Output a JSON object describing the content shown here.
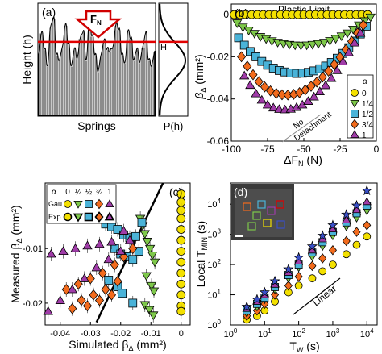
{
  "panel_letters": {
    "a": "(a)",
    "b": "(b)",
    "c": "(c)",
    "d": "(d)"
  },
  "colors": {
    "alpha_0": "#f3e000",
    "alpha_1_4": "#7ec84a",
    "alpha_1_2": "#4ab3d8",
    "alpha_3_4": "#f26b1d",
    "alpha_1": "#a03ca8",
    "red_line": "#e00000",
    "outline": "#000000"
  },
  "chart_data": [
    {
      "panel": "a",
      "type": "area",
      "ylabel": "Height (h)",
      "xlabel": "Springs",
      "force_label": "F",
      "force_subscript": "N",
      "h_marker": "H",
      "profile": [
        0.55,
        0.75,
        0.6,
        0.45,
        0.8,
        0.88,
        0.55,
        0.5,
        0.62,
        0.82,
        0.65,
        0.45,
        0.6,
        0.52,
        0.7,
        0.76,
        0.5,
        0.85,
        0.72,
        0.55,
        0.4,
        0.55,
        0.68,
        0.6,
        0.58,
        0.62,
        0.82,
        0.78,
        0.55,
        0.48,
        0.76,
        0.7,
        0.5,
        0.6,
        0.48,
        0.62,
        0.75,
        0.5,
        0.45,
        0.58
      ],
      "H_level": 0.66,
      "side_panel_xlabel": "P(h)"
    },
    {
      "panel": "b",
      "type": "scatter",
      "xlabel": "ΔF",
      "xlabel_sub": "N",
      "xlabel_unit": " (N)",
      "ylabel": "β",
      "ylabel_sub": "Δ",
      "ylabel_unit": " (mm²)",
      "xlim": [
        -100,
        0
      ],
      "ylim": [
        -0.06,
        0.005
      ],
      "xticks": [
        -100,
        -75,
        -50,
        -25,
        0
      ],
      "yticks": [
        0,
        -0.02,
        -0.04,
        -0.06
      ],
      "yticklabels": [
        "0",
        "-0.02",
        "-0.04",
        "-0.06"
      ],
      "annotations": {
        "plastic": "Plastic Limit",
        "no_detach_1": "No",
        "no_detach_2": "Detachment"
      },
      "legend_title": "α",
      "series": [
        {
          "name": "0",
          "marker": "circle",
          "color": "#f3e000",
          "x": [
            -98,
            -94,
            -90,
            -86,
            -82,
            -78,
            -74,
            -70,
            -66,
            -62,
            -58,
            -54,
            -50,
            -46,
            -42,
            -38,
            -34,
            -30,
            -26,
            -22,
            -18,
            -14,
            -10,
            -6
          ],
          "y": [
            0,
            0,
            0,
            0,
            0,
            0,
            0,
            0,
            0,
            0,
            0,
            0,
            0,
            0,
            0,
            0,
            0,
            0,
            0,
            0,
            0,
            0,
            0,
            0
          ]
        },
        {
          "name": "1/4",
          "marker": "triangle-down",
          "color": "#7ec84a",
          "x": [
            -96,
            -92,
            -88,
            -84,
            -80,
            -76,
            -72,
            -68,
            -64,
            -60,
            -56,
            -52,
            -48,
            -44,
            -40,
            -36,
            -32,
            -28,
            -24,
            -20,
            -16,
            -12,
            -8,
            -4
          ],
          "y": [
            -0.004,
            -0.006,
            -0.0075,
            -0.009,
            -0.0105,
            -0.0115,
            -0.0125,
            -0.0132,
            -0.0138,
            -0.0142,
            -0.0145,
            -0.0146,
            -0.0145,
            -0.0142,
            -0.0138,
            -0.0132,
            -0.0124,
            -0.0114,
            -0.0102,
            -0.0088,
            -0.007,
            -0.005,
            -0.003,
            -0.0012
          ]
        },
        {
          "name": "1/2",
          "marker": "square",
          "color": "#4ab3d8",
          "x": [
            -95,
            -91,
            -87,
            -83,
            -79,
            -75,
            -71,
            -67,
            -63,
            -59,
            -55,
            -51,
            -47,
            -43,
            -39,
            -35,
            -31,
            -27,
            -23,
            -19,
            -15,
            -11,
            -7
          ],
          "y": [
            -0.011,
            -0.0145,
            -0.0175,
            -0.02,
            -0.0222,
            -0.024,
            -0.0254,
            -0.0265,
            -0.0272,
            -0.0277,
            -0.0279,
            -0.0278,
            -0.0274,
            -0.0267,
            -0.0257,
            -0.0244,
            -0.0227,
            -0.0207,
            -0.0184,
            -0.0157,
            -0.0126,
            -0.0092,
            -0.0055
          ]
        },
        {
          "name": "3/4",
          "marker": "diamond",
          "color": "#f26b1d",
          "x": [
            -93,
            -89,
            -85,
            -81,
            -77,
            -73,
            -69,
            -65,
            -61,
            -57,
            -53,
            -49,
            -45,
            -41,
            -37,
            -33,
            -29,
            -25,
            -21,
            -17,
            -13,
            -9
          ],
          "y": [
            -0.02,
            -0.0245,
            -0.0285,
            -0.0318,
            -0.0343,
            -0.0362,
            -0.0374,
            -0.038,
            -0.0381,
            -0.0378,
            -0.037,
            -0.0357,
            -0.034,
            -0.032,
            -0.0296,
            -0.0268,
            -0.0237,
            -0.0203,
            -0.0166,
            -0.0127,
            -0.0088,
            -0.005
          ]
        },
        {
          "name": "1",
          "marker": "triangle-up",
          "color": "#a03ca8",
          "x": [
            -91,
            -87,
            -83,
            -79,
            -75,
            -71,
            -67,
            -63,
            -59,
            -55,
            -51,
            -47,
            -43,
            -39,
            -35,
            -31,
            -27,
            -23,
            -19,
            -15,
            -11
          ],
          "y": [
            -0.029,
            -0.0335,
            -0.0375,
            -0.0405,
            -0.0428,
            -0.0442,
            -0.0449,
            -0.0451,
            -0.0448,
            -0.044,
            -0.0428,
            -0.0411,
            -0.039,
            -0.0365,
            -0.0336,
            -0.0302,
            -0.0265,
            -0.0224,
            -0.018,
            -0.0134,
            -0.0088
          ]
        }
      ]
    },
    {
      "panel": "c",
      "type": "scatter",
      "xlabel": "Simulated β",
      "xlabel_sub": "Δ",
      "xlabel_unit": " (mm²)",
      "ylabel": "Measured β",
      "ylabel_sub": "Δ",
      "ylabel_unit": " (mm²)",
      "xlim": [
        -0.045,
        0.003
      ],
      "ylim": [
        -0.024,
        0.002
      ],
      "xticks": [
        -0.04,
        -0.03,
        -0.02,
        -0.01,
        0
      ],
      "xticklabels": [
        "-0.04",
        "-0.03",
        "-0.02",
        "-0.01",
        "0"
      ],
      "yticks": [
        -0.01,
        -0.02
      ],
      "yticklabels": [
        "-0.01",
        "-0.02"
      ],
      "legend_title": "α",
      "legend_columns": [
        "0",
        "¼",
        "½",
        "¾",
        "1"
      ],
      "legend_rows": [
        "Gau",
        "Exp"
      ],
      "identity_line": [
        [
          -0.028,
          -0.0235
        ],
        [
          -0.006,
          0.002
        ]
      ],
      "series": [
        {
          "name": "0",
          "marker": "circle",
          "color": "#f3e000",
          "x": [
            0,
            0,
            0,
            0,
            0,
            0,
            0,
            0,
            0,
            0,
            0,
            0,
            0
          ],
          "y": [
            0,
            -0.0015,
            -0.003,
            -0.0045,
            -0.0065,
            -0.0085,
            -0.0105,
            -0.0125,
            -0.0145,
            -0.0165,
            -0.0185,
            -0.0205,
            -0.0215
          ]
        },
        {
          "name": "1/4",
          "marker": "triangle-down",
          "color": "#7ec84a",
          "x": [
            -0.0135,
            -0.0127,
            -0.012,
            -0.0112,
            -0.0103,
            -0.0095,
            -0.0087,
            -0.0115,
            -0.0098,
            -0.009,
            -0.012,
            -0.0105,
            -0.0092
          ],
          "y": [
            -0.0045,
            -0.0058,
            -0.0073,
            -0.0087,
            -0.01,
            -0.0112,
            -0.0125,
            -0.015,
            -0.0168,
            -0.0178,
            -0.0203,
            -0.0212,
            -0.0222
          ]
        },
        {
          "name": "1/2",
          "marker": "square",
          "color": "#4ab3d8",
          "x": [
            -0.025,
            -0.023,
            -0.021,
            -0.019,
            -0.017,
            -0.015,
            -0.013,
            -0.022,
            -0.02,
            -0.018,
            -0.016,
            -0.014,
            -0.024,
            -0.021,
            -0.0195,
            -0.016
          ],
          "y": [
            -0.0055,
            -0.006,
            -0.0065,
            -0.0075,
            -0.008,
            -0.0078,
            -0.0052,
            -0.01,
            -0.011,
            -0.0115,
            -0.012,
            -0.0105,
            -0.0158,
            -0.017,
            -0.0182,
            -0.02
          ]
        },
        {
          "name": "3/4",
          "marker": "diamond",
          "color": "#f26b1d",
          "x": [
            -0.038,
            -0.034,
            -0.03,
            -0.026,
            -0.022,
            -0.019,
            -0.016,
            -0.033,
            -0.029,
            -0.025,
            -0.021,
            -0.036,
            -0.031,
            -0.027,
            -0.023
          ],
          "y": [
            -0.0175,
            -0.0165,
            -0.0155,
            -0.0145,
            -0.013,
            -0.0115,
            -0.01,
            -0.0195,
            -0.0185,
            -0.0175,
            -0.016,
            -0.021,
            -0.0205,
            -0.0195,
            -0.0185
          ]
        },
        {
          "name": "1",
          "marker": "triangle-up",
          "color": "#a03ca8",
          "x": [
            -0.044,
            -0.04,
            -0.036,
            -0.032,
            -0.028,
            -0.024,
            -0.02,
            -0.017,
            -0.043,
            -0.039,
            -0.035,
            -0.031,
            -0.027,
            -0.023,
            -0.019
          ],
          "y": [
            -0.0215,
            -0.0195,
            -0.0175,
            -0.0155,
            -0.0135,
            -0.012,
            -0.0105,
            -0.0085,
            -0.011,
            -0.0105,
            -0.01,
            -0.0095,
            -0.0092,
            -0.0088,
            -0.0068
          ]
        }
      ]
    },
    {
      "panel": "d",
      "type": "scatter",
      "xlabel": "T",
      "xlabel_sub": "W",
      "xlabel_unit": " (s)",
      "ylabel": "Local T",
      "ylabel_sub": "MIN",
      "ylabel_unit": " (s)",
      "xscale": "log",
      "yscale": "log",
      "xlim": [
        1,
        20000
      ],
      "ylim": [
        1,
        50000
      ],
      "xtick_bases": [
        "10",
        "10",
        "10",
        "10",
        "10"
      ],
      "xtick_exps": [
        "0",
        "1",
        "2",
        "3",
        "4"
      ],
      "ytick_bases": [
        "10",
        "10",
        "10",
        "10",
        "10"
      ],
      "ytick_exps": [
        "0",
        "1",
        "2",
        "3",
        "4"
      ],
      "annotation": "Linear",
      "tw": [
        3,
        6,
        10,
        20,
        50,
        100,
        250,
        500,
        1000,
        2500,
        5000,
        10000
      ],
      "series": [
        {
          "name": "circle-yellow",
          "marker": "circle",
          "color": "#f3e000",
          "y": [
            1.5,
            2,
            3,
            6,
            12,
            20,
            35,
            60,
            100,
            220,
            450,
            850
          ]
        },
        {
          "name": "diamond-orange",
          "marker": "diamond",
          "color": "#f26b1d",
          "y": [
            2,
            3,
            5,
            10,
            20,
            40,
            90,
            160,
            300,
            600,
            1200,
            2000
          ]
        },
        {
          "name": "triangle-down-green",
          "marker": "triangle-down",
          "color": "#7ec84a",
          "y": [
            2.5,
            4,
            7,
            15,
            35,
            80,
            180,
            400,
            900,
            1800,
            3500,
            6000
          ]
        },
        {
          "name": "square-cyan",
          "marker": "square",
          "color": "#4ab3d8",
          "y": [
            3,
            5,
            8,
            18,
            45,
            100,
            250,
            550,
            1200,
            2500,
            5000,
            9000
          ]
        },
        {
          "name": "triangle-up-purple",
          "marker": "triangle-up",
          "color": "#a03ca8",
          "y": [
            3.5,
            6,
            10,
            22,
            55,
            130,
            300,
            700,
            1500,
            3000,
            6500,
            12000
          ]
        },
        {
          "name": "star-blue",
          "marker": "star",
          "color": "#3a50c8",
          "y": [
            4,
            7,
            12,
            28,
            70,
            170,
            400,
            900,
            2000,
            4500,
            9000,
            28000
          ]
        }
      ]
    }
  ]
}
